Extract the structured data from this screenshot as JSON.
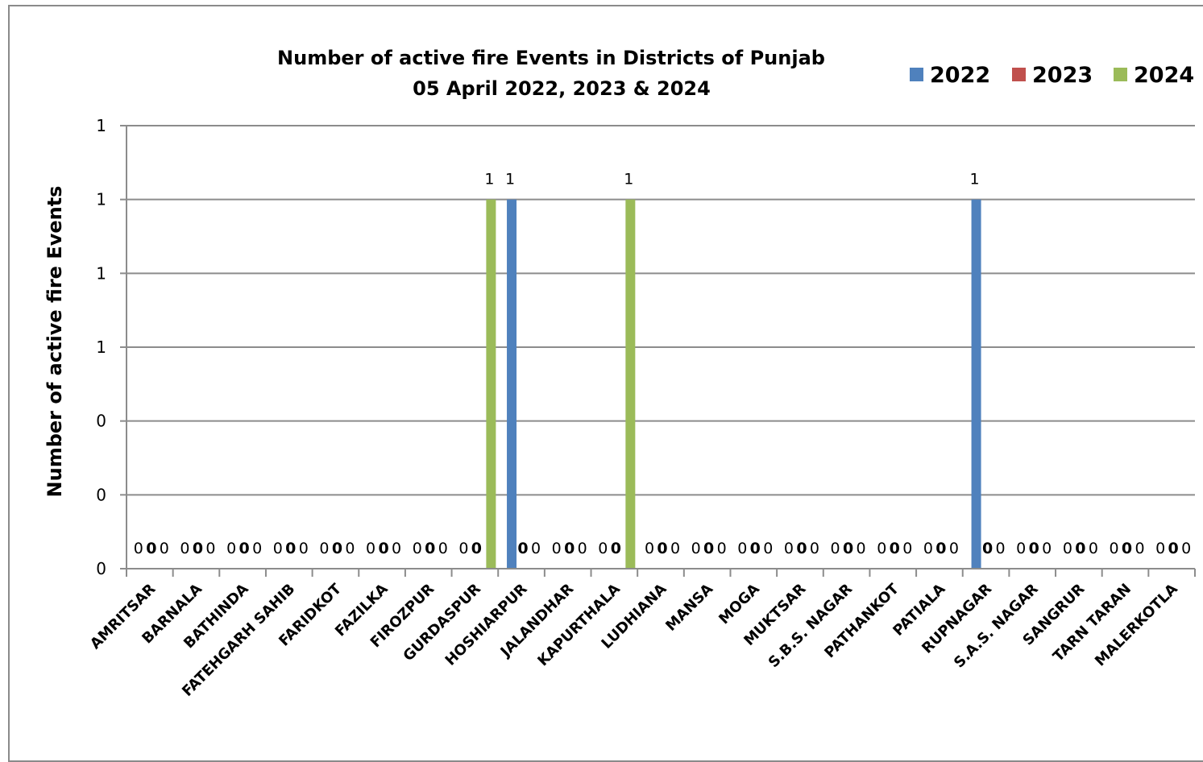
{
  "chart_data": {
    "type": "bar",
    "title": "Number of active fire Events in Districts of Punjab",
    "subtitle": "05 April 2022, 2023 & 2024",
    "xlabel": "",
    "ylabel": "Number of active  fire Events",
    "ylim": [
      0,
      1.2
    ],
    "ytick_values": [
      0,
      0.2,
      0.4,
      0.6,
      0.8,
      1.0,
      1.2
    ],
    "ytick_labels": [
      "0",
      "0",
      "0",
      "1",
      "1",
      "1",
      "1"
    ],
    "grid": true,
    "legend_position": "top-right",
    "categories": [
      "AMRITSAR",
      "BARNALA",
      "BATHINDA",
      "FATEHGARH SAHIB",
      "FARIDKOT",
      "FAZILKA",
      "FIROZPUR",
      "GURDASPUR",
      "HOSHIARPUR",
      "JALANDHAR",
      "KAPURTHALA",
      "LUDHIANA",
      "MANSA",
      "MOGA",
      "MUKTSAR",
      "S.B.S. NAGAR",
      "PATHANKOT",
      "PATIALA",
      "RUPNAGAR",
      "S.A.S. NAGAR",
      "SANGRUR",
      "TARN TARAN",
      "MALERKOTLA"
    ],
    "series": [
      {
        "name": "2022",
        "color": "#4f81bd",
        "values": [
          0,
          0,
          0,
          0,
          0,
          0,
          0,
          0,
          1,
          0,
          0,
          0,
          0,
          0,
          0,
          0,
          0,
          0,
          1,
          0,
          0,
          0,
          0
        ]
      },
      {
        "name": "2023",
        "color": "#c0504d",
        "values": [
          0,
          0,
          0,
          0,
          0,
          0,
          0,
          0,
          0,
          0,
          0,
          0,
          0,
          0,
          0,
          0,
          0,
          0,
          0,
          0,
          0,
          0,
          0
        ]
      },
      {
        "name": "2024",
        "color": "#9bbb59",
        "values": [
          0,
          0,
          0,
          0,
          0,
          0,
          0,
          1,
          0,
          0,
          1,
          0,
          0,
          0,
          0,
          0,
          0,
          0,
          0,
          0,
          0,
          0,
          0
        ]
      }
    ]
  }
}
